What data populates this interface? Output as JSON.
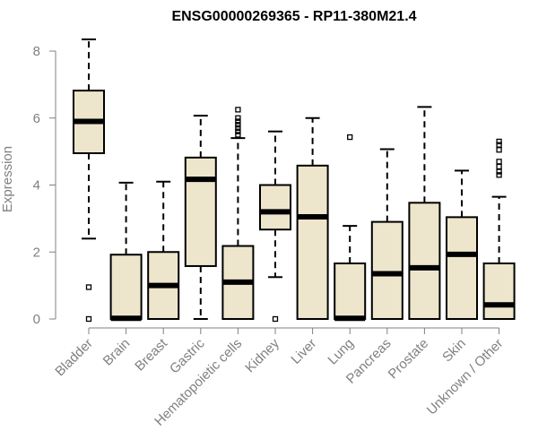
{
  "chart_data": {
    "type": "boxplot",
    "title": "ENSG00000269365 - RP11-380M21.4",
    "ylabel": "Expression",
    "xlabel": "",
    "ylim": [
      0,
      8
    ],
    "yticks": [
      0,
      2,
      4,
      6,
      8
    ],
    "grid": false,
    "box_fill": "#ede6cc",
    "box_stroke": "#000000",
    "axis_color": "#808080",
    "categories": [
      "Bladder",
      "Brain",
      "Breast",
      "Gastric",
      "Hematopoietic cells",
      "Kidney",
      "Liver",
      "Lung",
      "Pancreas",
      "Prostate",
      "Skin",
      "Unknown / Other"
    ],
    "boxes": [
      {
        "whisker_low": 2.4,
        "q1": 4.95,
        "median": 5.9,
        "q3": 6.82,
        "whisker_high": 8.35,
        "outliers": [
          0.95,
          0.0
        ]
      },
      {
        "whisker_low": 0.0,
        "q1": 0.0,
        "median": 0.02,
        "q3": 1.92,
        "whisker_high": 4.07,
        "outliers": []
      },
      {
        "whisker_low": 0.0,
        "q1": 0.0,
        "median": 1.0,
        "q3": 2.0,
        "whisker_high": 4.1,
        "outliers": []
      },
      {
        "whisker_low": 0.0,
        "q1": 1.58,
        "median": 4.17,
        "q3": 4.82,
        "whisker_high": 6.07,
        "outliers": []
      },
      {
        "whisker_low": 0.0,
        "q1": 0.0,
        "median": 1.1,
        "q3": 2.18,
        "whisker_high": 5.4,
        "outliers": [
          5.5,
          5.6,
          5.7,
          5.8,
          5.9,
          6.0,
          6.25
        ]
      },
      {
        "whisker_low": 1.25,
        "q1": 2.67,
        "median": 3.2,
        "q3": 4.0,
        "whisker_high": 5.6,
        "outliers": [
          0.0
        ]
      },
      {
        "whisker_low": 0.0,
        "q1": 0.0,
        "median": 3.05,
        "q3": 4.58,
        "whisker_high": 6.0,
        "outliers": []
      },
      {
        "whisker_low": 0.0,
        "q1": 0.0,
        "median": 0.02,
        "q3": 1.66,
        "whisker_high": 2.78,
        "outliers": [
          5.43
        ]
      },
      {
        "whisker_low": 0.0,
        "q1": 0.0,
        "median": 1.35,
        "q3": 2.9,
        "whisker_high": 5.07,
        "outliers": []
      },
      {
        "whisker_low": 0.0,
        "q1": 0.0,
        "median": 1.53,
        "q3": 3.47,
        "whisker_high": 6.33,
        "outliers": []
      },
      {
        "whisker_low": 0.0,
        "q1": 0.0,
        "median": 1.93,
        "q3": 3.04,
        "whisker_high": 4.43,
        "outliers": []
      },
      {
        "whisker_low": 0.0,
        "q1": 0.0,
        "median": 0.42,
        "q3": 1.66,
        "whisker_high": 3.65,
        "outliers": [
          4.3,
          4.4,
          4.55,
          4.7,
          5.05,
          5.2,
          5.3
        ]
      }
    ]
  }
}
